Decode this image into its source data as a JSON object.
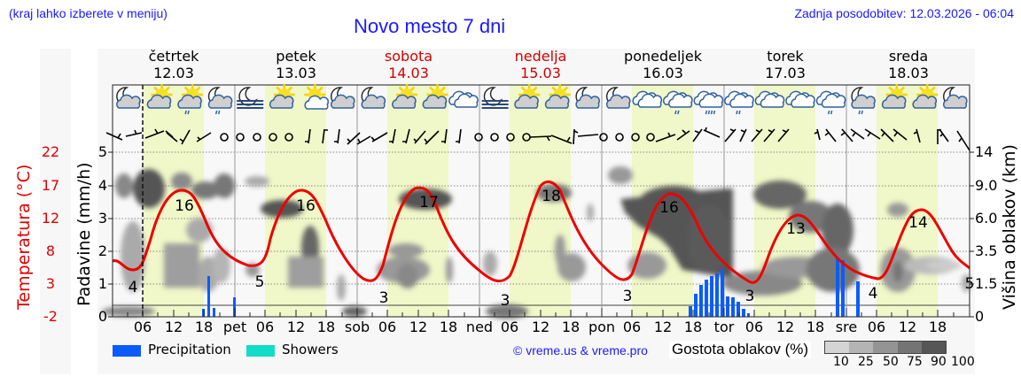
{
  "header": {
    "region_hint": "(kraj lahko izberete v meniju)",
    "title": "Novo mesto 7 dni",
    "last_update": "Zadnja posodobitev: 12.03.2026 - 06:04"
  },
  "days": [
    {
      "name": "četrtek",
      "date": "12.03",
      "weekend": false,
      "abbr": ""
    },
    {
      "name": "petek",
      "date": "13.03",
      "weekend": false,
      "abbr": "pet"
    },
    {
      "name": "sobota",
      "date": "14.03",
      "weekend": true,
      "abbr": "sob"
    },
    {
      "name": "nedelja",
      "date": "15.03",
      "weekend": true,
      "abbr": "ned"
    },
    {
      "name": "ponedeljek",
      "date": "16.03",
      "weekend": false,
      "abbr": "pon"
    },
    {
      "name": "torek",
      "date": "17.03",
      "weekend": false,
      "abbr": "tor"
    },
    {
      "name": "sreda",
      "date": "18.03",
      "weekend": false,
      "abbr": "sre"
    }
  ],
  "axes": {
    "left_title": "Padavine (mm/h)",
    "temp_title": "Temperatura (°C)",
    "right_title": "Višina oblakov (km)",
    "left_ticks": [
      "5",
      "4",
      "3",
      "2",
      "1",
      "0"
    ],
    "temp_ticks": [
      "22",
      "17",
      "12",
      "8",
      "3",
      "-2"
    ],
    "right_ticks": [
      "14",
      "9.0",
      "6.0",
      "3.5",
      "1.5",
      "0"
    ],
    "hour_ticks": [
      "06",
      "12",
      "18"
    ]
  },
  "legend": {
    "precip_label": "Precipitation",
    "precip_color": "#0a5cff",
    "showers_label": "Showers",
    "showers_color": "#12dcc8",
    "credit": "© vreme.us & vreme.pro",
    "cloud_title": "Gostota oblakov (%)",
    "cloud_scale_labels": [
      "10",
      "25",
      "50",
      "75",
      "90",
      "100"
    ],
    "cloud_scale_colors": [
      "#d4d4d4",
      "#b4b4b4",
      "#949494",
      "#747474",
      "#565656"
    ]
  },
  "colors": {
    "temperature_line": "#ee0000",
    "daytime_band": "#f0f7c8",
    "night_band": "#f8f8f8",
    "weekend_text": "#d40000",
    "header_blue": "#1a1aff"
  },
  "icons": [
    "moon-cloud",
    "sun-cloud",
    "sun-cloud-rain",
    "moon-cloud-rain",
    "moon-fog",
    "sun-cloud",
    "sun-small-cloud",
    "moon-cloud",
    "moon-cloud",
    "sun-cloud",
    "sun-cloud",
    "cloudy",
    "moon-fog",
    "sun-cloud",
    "sun-cloud",
    "moon-cloud",
    "moon-cloud",
    "cloudy",
    "cloudy-rain",
    "cloudy-heavy-rain",
    "cloudy-rain",
    "cloudy",
    "cloudy",
    "cloudy-rain",
    "moon-cloud-rain",
    "sun-cloud",
    "sun-cloud",
    "moon-cloud"
  ],
  "chart_data": {
    "type": "line",
    "title": "Novo mesto 7 dni",
    "xlabel": "",
    "ylabel": "Padavine (mm/h)",
    "y2label": "Temperatura (°C)",
    "y3label": "Višina oblakov (km)",
    "ylim": [
      0,
      5
    ],
    "temp_range": [
      -2,
      22
    ],
    "grid": true,
    "x_start": "12.03 02:00",
    "x_end": "18.03 24:00",
    "temperature_series": {
      "name": "Temperatura (°C)",
      "x_hours": [
        0,
        3,
        6,
        9,
        12,
        15,
        18,
        21,
        24,
        27,
        30,
        33,
        36,
        39,
        42,
        45,
        48,
        51,
        54,
        57,
        60,
        63,
        66,
        69,
        72,
        75,
        78,
        81,
        84,
        87,
        90,
        93,
        96,
        99,
        102,
        105,
        108,
        111,
        114,
        117,
        120,
        123,
        126,
        129,
        132,
        135,
        138,
        141,
        144,
        147,
        150,
        153,
        156,
        159,
        162,
        165,
        168
      ],
      "values": [
        6,
        5,
        4,
        9,
        15,
        16,
        14,
        10,
        7,
        5.5,
        5,
        10,
        15,
        16,
        14,
        10,
        6.5,
        4.5,
        3,
        9,
        16,
        17,
        15,
        10,
        6.5,
        4.5,
        3,
        9,
        16,
        18,
        16,
        11,
        7,
        4.5,
        3,
        9,
        15,
        16,
        15,
        11,
        7,
        4.5,
        3,
        6,
        11,
        13,
        12,
        9,
        6.5,
        5,
        4,
        8,
        13,
        14,
        12,
        9,
        7
      ]
    },
    "temperature_labels": [
      {
        "day": "četrtek",
        "min": 4,
        "max": 16
      },
      {
        "day": "petek",
        "min": 5,
        "max": 16
      },
      {
        "day": "sobota",
        "min": 3,
        "max": 17
      },
      {
        "day": "nedelja",
        "min": 3,
        "max": 18
      },
      {
        "day": "ponedeljek",
        "min": 3,
        "max": 16
      },
      {
        "day": "torek",
        "min": 3,
        "max": 13
      },
      {
        "day": "sreda",
        "min": 4,
        "max": 14
      },
      {
        "day": "end",
        "min": 5,
        "max": null
      }
    ],
    "precipitation_series": {
      "name": "Precipitation (mm/h)",
      "bars": [
        {
          "time": "12.03 18:00",
          "value": 0.4
        },
        {
          "time": "12.03 19:00",
          "value": 1.3
        },
        {
          "time": "12.03 20:00",
          "value": 0.4
        },
        {
          "time": "13.03 00:00",
          "value": 0.6
        },
        {
          "time": "16.03 17:00",
          "value": 0.4
        },
        {
          "time": "16.03 18:00",
          "value": 0.7
        },
        {
          "time": "16.03 19:00",
          "value": 0.9
        },
        {
          "time": "16.03 20:00",
          "value": 1.1
        },
        {
          "time": "16.03 21:00",
          "value": 1.2
        },
        {
          "time": "16.03 22:00",
          "value": 1.3
        },
        {
          "time": "16.03 23:00",
          "value": 1.4
        },
        {
          "time": "17.03 00:00",
          "value": 0.6
        },
        {
          "time": "17.03 01:00",
          "value": 0.5
        },
        {
          "time": "17.03 02:00",
          "value": 0.4
        },
        {
          "time": "17.03 03:00",
          "value": 0.2
        },
        {
          "time": "17.03 04:00",
          "value": 0.1
        },
        {
          "time": "17.03 22:00",
          "value": 1.8
        },
        {
          "time": "17.03 23:00",
          "value": 1.7
        },
        {
          "time": "18.03 03:00",
          "value": 1.1
        }
      ]
    },
    "showers_series": {
      "name": "Showers",
      "bars": []
    },
    "cloud_density_legend": [
      10,
      25,
      50,
      75,
      90,
      100
    ]
  }
}
